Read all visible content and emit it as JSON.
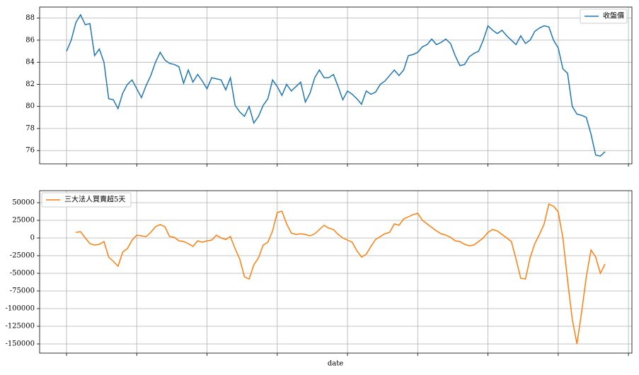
{
  "chart_data": [
    {
      "type": "line",
      "categories": [
        null,
        null,
        null,
        null,
        null,
        null,
        null,
        null,
        null,
        null,
        null,
        null,
        null,
        null,
        null,
        null,
        null,
        null,
        null,
        null,
        null,
        null,
        null,
        null,
        null,
        null,
        null,
        null,
        null,
        null,
        null,
        null,
        null,
        null,
        null,
        null,
        null,
        null,
        null,
        null,
        null,
        null,
        null,
        null,
        null,
        null,
        null,
        null,
        null,
        null,
        null,
        null,
        null,
        null,
        null,
        null,
        null,
        null,
        null,
        null,
        null,
        null,
        null,
        null,
        null,
        null,
        null,
        null,
        null,
        null,
        null,
        null,
        null,
        null,
        null,
        null,
        null,
        null,
        null,
        null,
        null,
        null,
        null,
        null,
        null,
        null,
        null,
        null,
        null,
        null,
        null,
        null,
        null,
        null,
        null,
        null,
        null,
        null,
        null,
        null,
        null,
        null,
        null,
        null,
        null,
        null,
        null,
        null,
        null,
        null,
        null,
        null,
        null,
        null,
        null,
        null
      ],
      "series": [
        {
          "name": "收盤價",
          "color": "#1f77b4",
          "values": [
            85.0,
            86.0,
            87.6,
            88.3,
            87.4,
            87.5,
            84.6,
            85.2,
            84.0,
            80.7,
            80.6,
            79.8,
            81.2,
            82.0,
            82.4,
            81.6,
            80.8,
            81.9,
            82.8,
            84.0,
            84.9,
            84.2,
            83.9,
            83.8,
            83.6,
            82.1,
            83.3,
            82.2,
            82.9,
            82.3,
            81.6,
            82.6,
            82.5,
            82.4,
            81.5,
            82.6,
            80.1,
            79.5,
            79.1,
            80.0,
            78.5,
            79.1,
            80.1,
            80.7,
            82.4,
            81.8,
            81.0,
            82.0,
            81.4,
            81.8,
            82.2,
            80.4,
            81.2,
            82.6,
            83.3,
            82.6,
            82.6,
            82.9,
            81.8,
            80.6,
            81.4,
            81.1,
            80.7,
            80.2,
            81.4,
            81.1,
            81.3,
            82.0,
            82.3,
            82.8,
            83.3,
            82.8,
            83.3,
            84.6,
            84.7,
            84.9,
            85.4,
            85.6,
            86.1,
            85.6,
            85.8,
            86.1,
            85.7,
            84.6,
            83.7,
            83.8,
            84.5,
            84.8,
            85.0,
            86.0,
            87.3,
            86.9,
            86.6,
            86.9,
            86.4,
            86.0,
            85.6,
            86.4,
            85.7,
            86.0,
            86.8,
            87.1,
            87.3,
            87.2,
            86.0,
            85.3,
            83.4,
            83.0,
            80.0,
            79.3,
            79.2,
            79.0,
            77.5,
            75.6,
            75.5,
            75.9
          ]
        }
      ],
      "ylim": [
        74.8,
        89.0
      ],
      "yticks": [
        76,
        78,
        80,
        82,
        84,
        86,
        88
      ],
      "grid": true,
      "legend": "upper right"
    },
    {
      "type": "line",
      "xlabel": "date",
      "categories": [
        null,
        null,
        null,
        null,
        null,
        null,
        null,
        null,
        null,
        null,
        null,
        null,
        null,
        null,
        null,
        null,
        null,
        null,
        null,
        null,
        null,
        null,
        null,
        null,
        null,
        null,
        null,
        null,
        null,
        null,
        null,
        null,
        null,
        null,
        null,
        null,
        null,
        null,
        null,
        null,
        null,
        null,
        null,
        null,
        null,
        null,
        null,
        null,
        null,
        null,
        null,
        null,
        null,
        null,
        null,
        null,
        null,
        null,
        null,
        null,
        null,
        null,
        null,
        null,
        null,
        null,
        null,
        null,
        null,
        null,
        null,
        null,
        null,
        null,
        null,
        null,
        null,
        null,
        null,
        null,
        null,
        null,
        null,
        null,
        null,
        null,
        null,
        null,
        null,
        null,
        null,
        null,
        null,
        null,
        null,
        null,
        null,
        null,
        null,
        null,
        null,
        null,
        null,
        null,
        null,
        null,
        null,
        null,
        null,
        null,
        null,
        null,
        null,
        null,
        null,
        null
      ],
      "series": [
        {
          "name": "三大法人買賣超5天",
          "color": "#ff7f0e",
          "values": [
            null,
            null,
            8000,
            9000,
            0,
            -8000,
            -10000,
            -9000,
            -5000,
            -27000,
            -33000,
            -40000,
            -20000,
            -15000,
            -3000,
            4000,
            3000,
            2000,
            8000,
            16000,
            19000,
            16000,
            2000,
            1000,
            -4000,
            -5000,
            -8000,
            -12000,
            -4000,
            -6000,
            -4000,
            -3000,
            4000,
            0,
            -2000,
            2000,
            -15000,
            -30000,
            -55000,
            -58000,
            -38000,
            -28000,
            -10000,
            -6000,
            10000,
            36000,
            38000,
            20000,
            7000,
            5000,
            6000,
            5000,
            3000,
            6000,
            12000,
            18000,
            14000,
            12000,
            5000,
            0,
            -3000,
            -6000,
            -18000,
            -27000,
            -23000,
            -12000,
            -2000,
            2000,
            6000,
            8000,
            20000,
            18000,
            27000,
            30000,
            33000,
            35000,
            25000,
            20000,
            15000,
            10000,
            6000,
            4000,
            1000,
            -4000,
            -5000,
            -9000,
            -11000,
            -10000,
            -5000,
            0,
            8000,
            12000,
            10000,
            5000,
            0,
            -5000,
            -30000,
            -57000,
            -58000,
            -28000,
            -8000,
            5000,
            20000,
            48000,
            45000,
            37000,
            0,
            -60000,
            -115000,
            -150000,
            -105000,
            -55000,
            -17000,
            -27000,
            -50000,
            -37000
          ]
        }
      ],
      "ylim": [
        -163000,
        67000
      ],
      "yticks": [
        50000,
        25000,
        0,
        -25000,
        -50000,
        -75000,
        -100000,
        -125000,
        -150000
      ],
      "grid": true,
      "legend": "upper left"
    }
  ]
}
